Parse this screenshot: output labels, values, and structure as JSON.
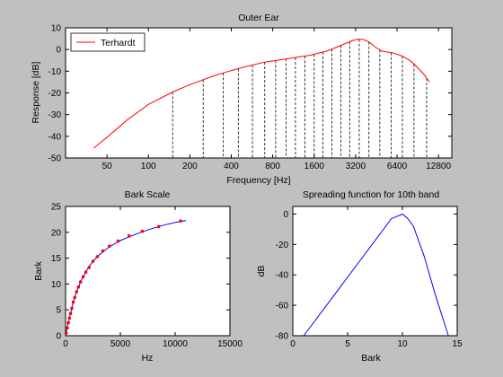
{
  "chart_data": [
    {
      "type": "line",
      "title": "Outer Ear",
      "xlabel": "Frequency [Hz]",
      "ylabel": "Response [dB]",
      "xscale": "log",
      "xlim": [
        25,
        16000
      ],
      "ylim": [
        -50,
        10
      ],
      "xtick_labels": [
        "50",
        "100",
        "200",
        "400",
        "800",
        "1600",
        "3200",
        "6400",
        "12800"
      ],
      "ytick_labels": [
        "10",
        "0",
        "-10",
        "-20",
        "-30",
        "-40",
        "-50"
      ],
      "legend": {
        "placement": "top-left",
        "entries": [
          "Terhardt"
        ]
      },
      "series": [
        {
          "name": "Terhardt",
          "color": "#ff0000",
          "x": [
            40,
            50,
            70,
            100,
            150,
            200,
            300,
            400,
            500,
            700,
            1000,
            1500,
            2000,
            2500,
            3000,
            3300,
            3600,
            4000,
            4500,
            5000,
            6000,
            7000,
            8000,
            9000,
            10000,
            11000
          ],
          "y": [
            -45.5,
            -40.5,
            -32.5,
            -25.3,
            -19.6,
            -16.2,
            -12.1,
            -9.7,
            -8.0,
            -5.8,
            -4.3,
            -2.6,
            -0.6,
            1.9,
            4.0,
            4.7,
            4.7,
            3.5,
            0.9,
            -0.8,
            -1.6,
            -3.0,
            -5.2,
            -8.2,
            -11.3,
            -15.0
          ]
        }
      ],
      "vlines": {
        "style": "dashed",
        "color": "#000000",
        "x": [
          150,
          250,
          350,
          450,
          570,
          700,
          840,
          1000,
          1170,
          1370,
          1600,
          1850,
          2150,
          2500,
          2900,
          3400,
          4000,
          4800,
          5800,
          7000,
          8500,
          10500
        ]
      }
    },
    {
      "type": "line",
      "title": "Bark Scale",
      "xlabel": "Hz",
      "ylabel": "Bark",
      "xlim": [
        0,
        15000
      ],
      "ylim": [
        0,
        25
      ],
      "xtick_labels": [
        "0",
        "5000",
        "10000",
        "15000"
      ],
      "ytick_labels": [
        "0",
        "5",
        "10",
        "15",
        "20",
        "25"
      ],
      "series": [
        {
          "type": "line",
          "color": "#0000ff",
          "x": [
            0,
            100,
            200,
            300,
            400,
            500,
            700,
            1000,
            1500,
            2000,
            2500,
            3000,
            4000,
            5000,
            6000,
            7000,
            8000,
            9000,
            10000,
            11000
          ],
          "y": [
            0,
            1.0,
            2.0,
            2.9,
            3.9,
            4.7,
            6.5,
            8.5,
            11.0,
            12.9,
            14.4,
            15.5,
            17.2,
            18.4,
            19.3,
            20.1,
            20.8,
            21.4,
            21.9,
            22.3
          ]
        },
        {
          "type": "scatter",
          "color": "#ff0000",
          "x": [
            50,
            150,
            250,
            350,
            450,
            570,
            700,
            840,
            1000,
            1170,
            1370,
            1600,
            1850,
            2150,
            2500,
            2900,
            3400,
            4000,
            4800,
            5800,
            7000,
            8500,
            10500
          ],
          "y": [
            0.5,
            1.5,
            2.5,
            3.4,
            4.3,
            5.3,
            6.5,
            7.4,
            8.5,
            9.4,
            10.4,
            11.4,
            12.3,
            13.2,
            14.4,
            15.3,
            16.4,
            17.3,
            18.3,
            19.3,
            20.2,
            21.1,
            22.2
          ]
        }
      ]
    },
    {
      "type": "line",
      "title": "Spreading function for 10th band",
      "xlabel": "Bark",
      "ylabel": "dB",
      "xlim": [
        0,
        15
      ],
      "ylim": [
        -80,
        5
      ],
      "xtick_labels": [
        "0",
        "5",
        "10",
        "15"
      ],
      "ytick_labels": [
        "0",
        "-20",
        "-40",
        "-60",
        "-80"
      ],
      "series": [
        {
          "color": "#0000ff",
          "x": [
            1,
            9,
            10,
            10.5,
            11,
            12,
            13,
            14.2
          ],
          "y": [
            -80,
            -3,
            0,
            -3,
            -8,
            -28,
            -53,
            -80
          ]
        }
      ]
    }
  ],
  "legend_box": {
    "label": "Terhardt"
  }
}
